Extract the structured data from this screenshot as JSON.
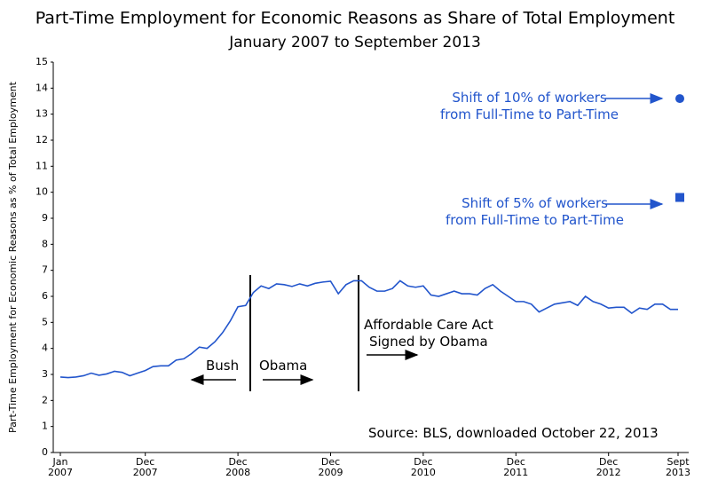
{
  "chart_data": {
    "type": "line",
    "title": "Part-Time Employment for Economic Reasons as Share of Total Employment",
    "subtitle": "January 2007 to September 2013",
    "y_label": "Part-Time Employment for Economic Reasons as % of Total Employment",
    "categories": [
      "Jan\n2007",
      null,
      null,
      null,
      null,
      null,
      null,
      null,
      null,
      null,
      null,
      "Dec\n2007",
      null,
      null,
      null,
      null,
      null,
      null,
      null,
      null,
      null,
      null,
      null,
      "Dec\n2008",
      null,
      null,
      null,
      null,
      null,
      null,
      null,
      null,
      null,
      null,
      null,
      "Dec\n2009",
      null,
      null,
      null,
      null,
      null,
      null,
      null,
      null,
      null,
      null,
      null,
      "Dec\n2010",
      null,
      null,
      null,
      null,
      null,
      null,
      null,
      null,
      null,
      null,
      null,
      "Dec\n2011",
      null,
      null,
      null,
      null,
      null,
      null,
      null,
      null,
      null,
      null,
      null,
      "Dec\n2012",
      null,
      null,
      null,
      null,
      null,
      null,
      null,
      null,
      "Sept\n2013"
    ],
    "values": [
      2.9,
      2.88,
      2.9,
      2.95,
      3.05,
      2.97,
      3.02,
      3.12,
      3.08,
      2.95,
      3.05,
      3.15,
      3.3,
      3.33,
      3.33,
      3.55,
      3.6,
      3.8,
      4.05,
      4.0,
      4.25,
      4.6,
      5.05,
      5.6,
      5.65,
      6.15,
      6.4,
      6.3,
      6.48,
      6.45,
      6.38,
      6.48,
      6.4,
      6.5,
      6.55,
      6.58,
      6.1,
      6.45,
      6.6,
      6.6,
      6.35,
      6.2,
      6.2,
      6.3,
      6.6,
      6.4,
      6.35,
      6.4,
      6.05,
      6.0,
      6.1,
      6.2,
      6.1,
      6.1,
      6.05,
      6.3,
      6.45,
      6.2,
      6.0,
      5.8,
      5.8,
      5.7,
      5.4,
      5.55,
      5.7,
      5.75,
      5.8,
      5.65,
      6.0,
      5.8,
      5.7,
      5.55,
      5.58,
      5.58,
      5.35,
      5.55,
      5.5,
      5.7,
      5.7,
      5.5,
      5.5
    ],
    "color": "#2255cc",
    "ylim": [
      0,
      15
    ],
    "yticks": [
      0,
      1,
      2,
      3,
      4,
      5,
      6,
      7,
      8,
      9,
      10,
      11,
      12,
      13,
      14,
      15
    ],
    "reference_points": [
      {
        "label": "Shift of 10% of workers\nfrom Full-Time to Part-Time",
        "value": 13.6,
        "marker": "circle"
      },
      {
        "label": "Shift of 5% of workers\nfrom Full-Time to Part-Time",
        "value": 9.8,
        "marker": "square"
      }
    ],
    "annotations": [
      "Bush",
      "Obama",
      "Affordable Care Act\nSigned by Obama",
      "Source:  BLS, downloaded October 22, 2013"
    ]
  }
}
